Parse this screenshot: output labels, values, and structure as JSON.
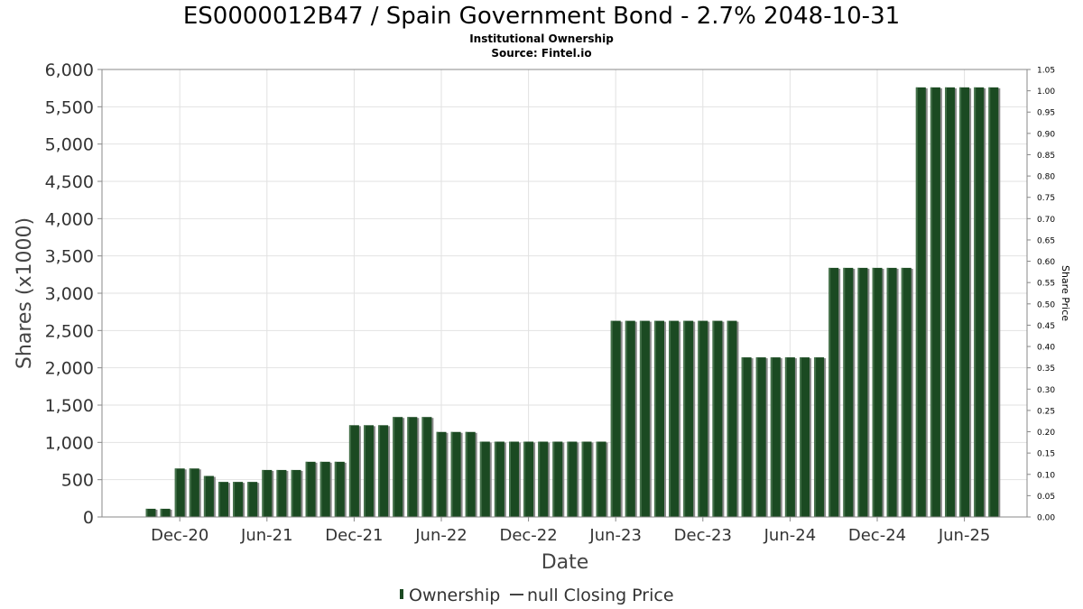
{
  "chart_data": {
    "type": "bar",
    "title": "ES0000012B47 / Spain Government Bond - 2.7% 2048-10-31",
    "subtitle_lines": [
      "Institutional Ownership",
      "Source: Fintel.io"
    ],
    "xlabel": "Date",
    "ylabel": "Shares (x1000)",
    "y2label": "Share Price",
    "ylim": [
      0,
      6000
    ],
    "y2lim": [
      0,
      1.05
    ],
    "yticks": [
      "0",
      "500",
      "1,000",
      "1,500",
      "2,000",
      "2,500",
      "3,000",
      "3,500",
      "4,000",
      "4,500",
      "5,000",
      "5,500",
      "6,000"
    ],
    "y2ticks": [
      "0.00",
      "0.05",
      "0.10",
      "0.15",
      "0.20",
      "0.25",
      "0.30",
      "0.35",
      "0.40",
      "0.45",
      "0.50",
      "0.55",
      "0.60",
      "0.65",
      "0.70",
      "0.75",
      "0.80",
      "0.85",
      "0.90",
      "0.95",
      "1.00",
      "1.05"
    ],
    "xticks": [
      "Dec-20",
      "Jun-21",
      "Dec-21",
      "Jun-22",
      "Dec-22",
      "Jun-23",
      "Dec-23",
      "Jun-24",
      "Dec-24",
      "Jun-25"
    ],
    "grid": true,
    "legend_position": "bottom",
    "series": [
      {
        "name": "Ownership",
        "color": "#1b4a22",
        "values": [
          110,
          110,
          650,
          650,
          550,
          470,
          470,
          470,
          630,
          630,
          630,
          740,
          740,
          740,
          1230,
          1230,
          1230,
          1340,
          1340,
          1340,
          1140,
          1140,
          1140,
          1010,
          1010,
          1010,
          1010,
          1010,
          1010,
          1010,
          1010,
          1010,
          2630,
          2630,
          2630,
          2630,
          2630,
          2630,
          2630,
          2630,
          2630,
          2140,
          2140,
          2140,
          2140,
          2140,
          2140,
          3340,
          3340,
          3340,
          3340,
          3340,
          3340,
          5760,
          5760,
          5760,
          5760,
          5760,
          5760
        ]
      },
      {
        "name": "null Closing Price",
        "color": "#444444",
        "values": []
      }
    ]
  }
}
